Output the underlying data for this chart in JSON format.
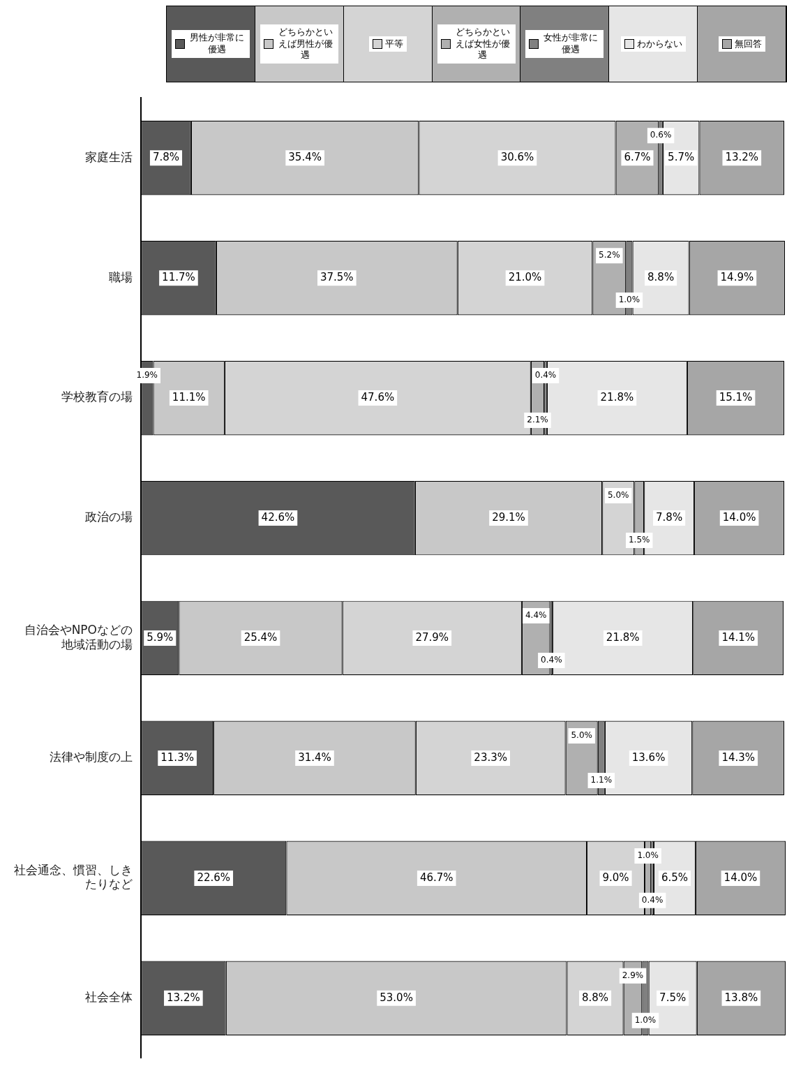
{
  "chart_data": {
    "type": "bar",
    "orientation": "horizontal",
    "stacked": true,
    "legend": "top",
    "tick_labels": "y",
    "grid": false,
    "xlim": [
      0,
      100.2
    ],
    "categories": [
      "家庭生活",
      "職場",
      "学校教育の場",
      "政治の場",
      "自治会やNPOなどの地域活動の場",
      "法律や制度の上",
      "社会通念、慣習、しきたりなど",
      "社会全体"
    ],
    "series": [
      {
        "name": "男性が非常に優遇",
        "color": "#595959",
        "values": [
          7.8,
          11.7,
          1.9,
          42.6,
          5.9,
          11.3,
          22.6,
          13.2
        ],
        "value_labels": [
          "7.8%",
          "11.7%",
          "1.9%",
          "42.6%",
          "5.9%",
          "11.3%",
          "22.6%",
          "13.2%"
        ]
      },
      {
        "name": "どちらかといえば男性が優遇",
        "color": "#c8c8c8",
        "values": [
          35.4,
          37.5,
          11.1,
          29.1,
          25.4,
          31.4,
          46.7,
          53.0
        ],
        "value_labels": [
          "35.4%",
          "37.5%",
          "11.1%",
          "29.1%",
          "25.4%",
          "31.4%",
          "46.7%",
          "53.0%"
        ]
      },
      {
        "name": "平等",
        "color": "#d4d4d4",
        "values": [
          30.6,
          21.0,
          47.6,
          5.0,
          27.9,
          23.3,
          9.0,
          8.8
        ],
        "value_labels": [
          "30.6%",
          "21.0%",
          "47.6%",
          "5.0%",
          "27.9%",
          "23.3%",
          "9.0%",
          "8.8%"
        ]
      },
      {
        "name": "どちらかといえば女性が優遇",
        "color": "#b0b0b0",
        "values": [
          6.7,
          5.2,
          2.1,
          1.5,
          4.4,
          5.0,
          1.0,
          2.9
        ],
        "value_labels": [
          "6.7%",
          "5.2%",
          "2.1%",
          "1.5%",
          "4.4%",
          "5.0%",
          "1.0%",
          "2.9%"
        ]
      },
      {
        "name": "女性が非常に優遇",
        "color": "#808080",
        "values": [
          0.6,
          1.0,
          0.4,
          0,
          0.4,
          1.1,
          0.4,
          1.0
        ],
        "value_labels": [
          "0.6%",
          "1.0%",
          "0.4%",
          null,
          "0.4%",
          "1.1%",
          "0.4%",
          "1.0%"
        ]
      },
      {
        "name": "わからない",
        "color": "#e6e6e6",
        "values": [
          5.7,
          8.8,
          21.8,
          7.8,
          21.8,
          13.6,
          6.5,
          7.5
        ],
        "value_labels": [
          "5.7%",
          "8.8%",
          "21.8%",
          "7.8%",
          "21.8%",
          "13.6%",
          "6.5%",
          "7.5%"
        ]
      },
      {
        "name": "無回答",
        "color": "#a6a6a6",
        "values": [
          13.2,
          14.9,
          15.1,
          14.0,
          14.1,
          14.3,
          14.0,
          13.8
        ],
        "value_labels": [
          "13.2%",
          "14.9%",
          "15.1%",
          "14.0%",
          "14.1%",
          "14.3%",
          "14.0%",
          "13.8%"
        ]
      }
    ]
  }
}
